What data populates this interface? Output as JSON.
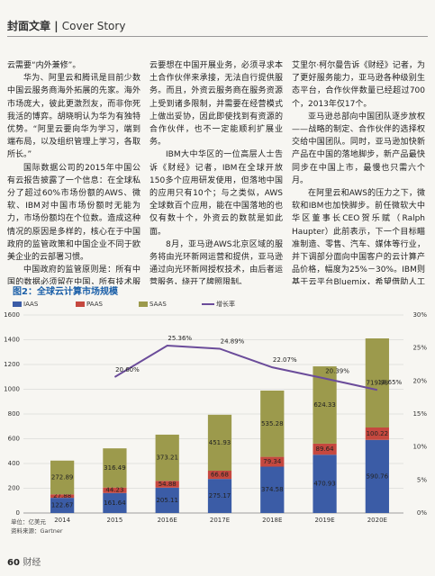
{
  "header": {
    "section": "封面文章",
    "section_en": "Cover Story"
  },
  "article": {
    "columns": [
      [
        "云需要“内外兼修”。",
        "华为、阿里云和腾讯是目前少数中国云服务商海外拓展的先家。海外市场庞大，彼此更激烈友，而非你死我活的博弈。胡晓明认为华为有独特优势。“阿里云要向华为学习，端到端布局，以及组织管理上学习，各取所长。”",
        "国际数据公司的2015年中国公有云报告披露了一个信息：在全球私分了超过60%市场份额的AWS、微软、IBM对中国市场份额时无能为力，市场份额均在个位数。造成这种情况的原因是多样的，核心在于中国政府的监管政策和中国企业不同于欧美企业的云部署习惯。",
        "中国政府的监管原则是：所有中国的数据必须留在中国，所有技术服务，都要由中国公司提供。这意味着，外资"
      ],
      [
        "云要想在中国开展业务，必须寻求本土合作伙伴来承接，无法自行提供服务。而且，外资云服务商在服务资源上受到诸多限制，并需要在经营模式上做出妥协，因此即使找到有资源的合作伙伴，也不一定能顺利扩展业务。",
        "IBM大中华区的一位高层人士告诉《财经》记者，IBM在全球开放150多个应用研发使用，但落地中国的应用只有10个；与之类似，AWS全球数百个应用，能在中国落地的也仅有数十个，外资云的数就是如此面。",
        "8月，亚马逊AWS北京区域的服务将由光环新网运营和提供，亚马逊通过向光环新网授权技术，由后者运营服务，绕开了牌照限制。",
        "亚马逊AWS全球市场营销副总裁"
      ],
      [
        "艾里尔·柯尔曼告诉《财经》记者，为了更好服务能力，亚马逊各种级别生态平台，合作伙伴数量已经超过700个，2013年仅17个。",
        "亚马逊总部向中国团队逐步放权——战略的制定、合作伙伴的选择权交给中国团队。同时，亚马逊加快新产品在中国的落地脚步，新产品最快同步在中国上市，最慢也只需六个月。",
        "在阿里云和AWS的压力之下，微软和IBM也加快脚步。前任微软大中华区董事长CEO贺乐赋（Ralph Haupter）此前表示，下一个目标瞄准制造、零售、汽车、媒体等行业，并下调部分面向中国客户的云计算产品价格，幅度为25%－30%。IBM则基于云平台Bluemix，希望借助人工智能、"
      ]
    ]
  },
  "chart_data": {
    "type": "bar",
    "stacked": true,
    "title": "图2：全球云计算市场规模",
    "categories": [
      "2014",
      "2015",
      "2016E",
      "2017E",
      "2018E",
      "2019E",
      "2020E"
    ],
    "series": [
      {
        "name": "IAAS",
        "color": "#3b5ca6",
        "values": [
          122.67,
          161.64,
          205.11,
          275.17,
          374.58,
          470.93,
          590.76
        ]
      },
      {
        "name": "PAAS",
        "color": "#c5483f",
        "values": [
          27.88,
          44.23,
          54.88,
          66.68,
          79.34,
          89.64,
          100.22
        ]
      },
      {
        "name": "SAAS",
        "color": "#9c9a4c",
        "values": [
          272.89,
          316.49,
          373.21,
          451.93,
          535.28,
          624.33,
          719.98
        ]
      },
      {
        "name": "增长率",
        "type": "line",
        "axis": "y2",
        "color": "#6b4c9a",
        "values": [
          null,
          20.6,
          25.36,
          24.89,
          22.07,
          20.39,
          18.65
        ],
        "value_labels": [
          null,
          "20.60%",
          "25.36%",
          "24.89%",
          "22.07%",
          "20.39%",
          "18.65%"
        ]
      }
    ],
    "ylim": [
      0,
      1600
    ],
    "yticks": [
      0,
      200,
      400,
      600,
      800,
      1000,
      1200,
      1400,
      1600
    ],
    "y2lim": [
      0,
      30
    ],
    "y2ticks": [
      {
        "value": 0,
        "label": "0%"
      },
      {
        "value": 5,
        "label": "5%"
      },
      {
        "value": 10,
        "label": "10%"
      },
      {
        "value": 15,
        "label": "15%"
      },
      {
        "value": 20,
        "label": "20%"
      },
      {
        "value": 25,
        "label": "25%"
      },
      {
        "value": 30,
        "label": "30%"
      }
    ],
    "grid": true,
    "legend": "top-left",
    "unit_note": "单位：亿美元",
    "source": "资料来源：Gartner"
  },
  "footer": {
    "page": "60",
    "magazine": "财经"
  }
}
